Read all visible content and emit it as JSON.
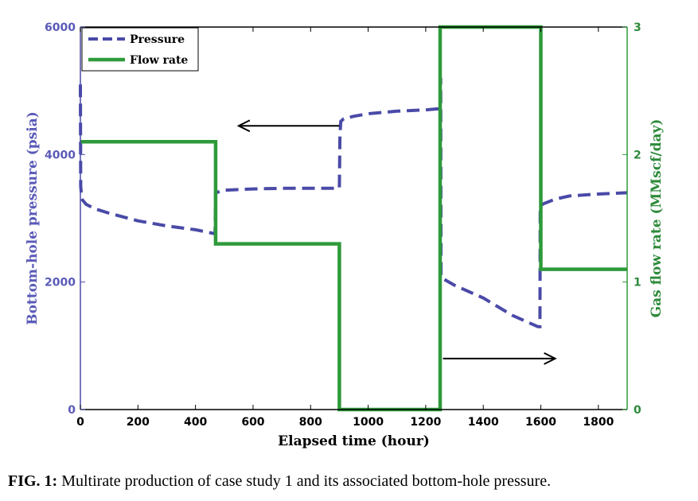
{
  "caption": {
    "prefix": "FIG. 1:",
    "text": " Multirate production of case study 1 and its associated bottom-hole pressure."
  },
  "chart_data": {
    "type": "line",
    "xlabel": "Elapsed time (hour)",
    "ylabel_left": "Bottom-hole pressure (psia)",
    "ylabel_right": "Gas flow rate (MMscf/day)",
    "xlim": [
      0,
      1900
    ],
    "ylim_left": [
      0,
      6000
    ],
    "ylim_right": [
      0,
      3
    ],
    "xticks": [
      "0",
      "200",
      "400",
      "600",
      "800",
      "1000",
      "1200",
      "1400",
      "1600",
      "1800"
    ],
    "yticks_left": [
      "0",
      "2000",
      "4000",
      "6000"
    ],
    "yticks_right": [
      "0",
      "1",
      "2",
      "3"
    ],
    "colors": {
      "pressure": "#4a4aa8",
      "flow": "#2e9a3a",
      "left_axis_text": "#5a5ab8",
      "right_axis_text": "#2e8a3a"
    },
    "legend": {
      "placement": "top-left",
      "entries": [
        "Pressure",
        "Flow rate"
      ]
    },
    "series": [
      {
        "name": "Pressure",
        "axis": "left",
        "style": "dashed",
        "x": [
          0,
          1,
          5,
          20,
          50,
          100,
          200,
          300,
          400,
          465,
          468,
          470,
          500,
          600,
          700,
          800,
          900,
          902,
          905,
          915,
          950,
          1000,
          1100,
          1200,
          1250,
          1252,
          1253,
          1256,
          1265,
          1300,
          1400,
          1500,
          1590,
          1597,
          1598,
          1600,
          1610,
          1650,
          1700,
          1800,
          1900
        ],
        "y": [
          5100,
          3500,
          3300,
          3220,
          3150,
          3080,
          2960,
          2880,
          2820,
          2760,
          2760,
          3400,
          3440,
          3460,
          3470,
          3470,
          3470,
          4300,
          4520,
          4560,
          4600,
          4640,
          4680,
          4700,
          4720,
          5200,
          2100,
          2100,
          2040,
          1950,
          1750,
          1480,
          1300,
          1300,
          3200,
          3200,
          3230,
          3300,
          3350,
          3380,
          3400
        ]
      },
      {
        "name": "Flow rate",
        "axis": "right",
        "style": "solid",
        "x": [
          0,
          470,
          470,
          900,
          900,
          1250,
          1250,
          1600,
          1600,
          1900
        ],
        "y": [
          2.1,
          2.1,
          1.3,
          1.3,
          0,
          0,
          3,
          3,
          1.1,
          1.1
        ]
      }
    ],
    "annotations": [
      {
        "type": "arrow",
        "direction": "left",
        "x_from": 900,
        "x_to": 550,
        "y": 4450,
        "axis": "left"
      },
      {
        "type": "arrow",
        "direction": "right",
        "x_from": 1260,
        "x_to": 1650,
        "y": 800,
        "axis": "left"
      }
    ]
  }
}
